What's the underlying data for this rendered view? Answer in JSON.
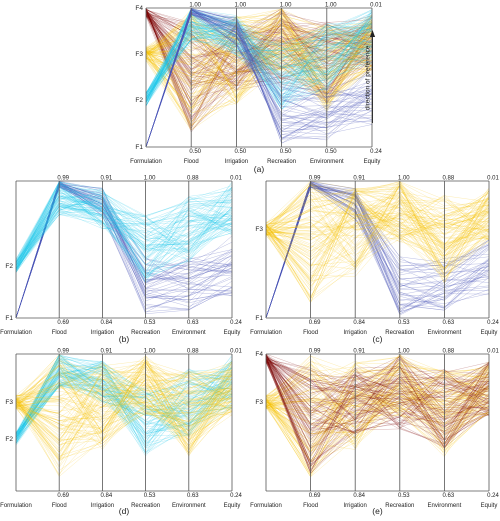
{
  "figure": {
    "axes": [
      "Formulation",
      "Flood",
      "Irrigation",
      "Recreation",
      "Environment",
      "Equity"
    ],
    "colors": {
      "F1": "#0b1f8a",
      "F2": "#1fc6e8",
      "F3": "#f5c000",
      "F4": "#7a0000",
      "dominated_blue": "#4c58b8"
    },
    "direction_label": "direction of preference",
    "panels": [
      {
        "id": "a",
        "caption": "(a)",
        "formulation_labels": [
          "F4",
          "F3",
          "F2",
          "F1"
        ],
        "top_labels": [
          "",
          "1.00",
          "1.00",
          "1.00",
          "1.00",
          "0.01"
        ],
        "bottom_labels": [
          "",
          "0.50",
          "0.50",
          "0.50",
          "0.50",
          "0.24"
        ],
        "formulations": [
          "F1",
          "F2",
          "F3",
          "F4"
        ],
        "show_direction_arrow": true
      },
      {
        "id": "b",
        "caption": "(b)",
        "formulation_labels": [
          "F2",
          "F1"
        ],
        "top_labels": [
          "",
          "0.99",
          "0.91",
          "1.00",
          "0.88",
          "0.01"
        ],
        "bottom_labels": [
          "",
          "0.69",
          "0.84",
          "0.53",
          "0.63",
          "0.24"
        ],
        "formulations": [
          "F1",
          "F2"
        ],
        "show_direction_arrow": false
      },
      {
        "id": "c",
        "caption": "(c)",
        "formulation_labels": [
          "F3",
          "F1"
        ],
        "top_labels": [
          "",
          "0.99",
          "0.91",
          "1.00",
          "0.88",
          "0.01"
        ],
        "bottom_labels": [
          "",
          "0.69",
          "0.84",
          "0.53",
          "0.63",
          "0.24"
        ],
        "formulations": [
          "F1",
          "F3"
        ],
        "show_direction_arrow": false
      },
      {
        "id": "d",
        "caption": "(d)",
        "formulation_labels": [
          "F3",
          "F2"
        ],
        "top_labels": [
          "",
          "0.99",
          "0.91",
          "1.00",
          "0.88",
          "0.01"
        ],
        "bottom_labels": [
          "",
          "0.69",
          "0.84",
          "0.53",
          "0.63",
          "0.24"
        ],
        "formulations": [
          "F2",
          "F3"
        ],
        "show_direction_arrow": false
      },
      {
        "id": "e",
        "caption": "(e)",
        "formulation_labels": [
          "F4",
          "F3"
        ],
        "top_labels": [
          "",
          "0.99",
          "0.91",
          "1.00",
          "0.88",
          "0.01"
        ],
        "bottom_labels": [
          "",
          "0.69",
          "0.84",
          "0.53",
          "0.63",
          "0.24"
        ],
        "formulations": [
          "F3",
          "F4"
        ],
        "show_direction_arrow": false
      }
    ]
  }
}
